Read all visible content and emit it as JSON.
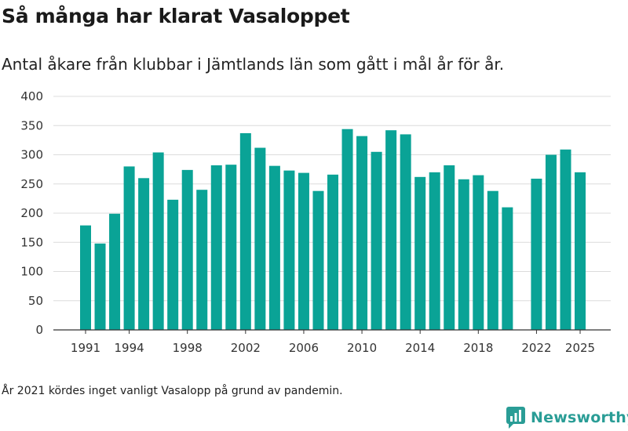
{
  "header": {
    "title": "Så många har klarat Vasaloppet",
    "subtitle": "Antal åkare från klubbar i Jämtlands län som gått i mål år för år."
  },
  "footer": {
    "note": "År 2021 kördes inget vanligt Vasalopp på grund av pandemin.",
    "brand": "Newsworthy"
  },
  "colors": {
    "bar": "#0aa396",
    "grid": "#dcdcdc",
    "axis": "#333333",
    "brand": "#2a9d96"
  },
  "chart_data": {
    "type": "bar",
    "title": "Så många har klarat Vasaloppet",
    "subtitle": "Antal åkare från klubbar i Jämtlands län som gått i mål år för år.",
    "xlabel": "",
    "ylabel": "",
    "ylim": [
      0,
      400
    ],
    "yticks": [
      0,
      50,
      100,
      150,
      200,
      250,
      300,
      350,
      400
    ],
    "xticks": [
      1991,
      1994,
      1998,
      2002,
      2006,
      2010,
      2014,
      2018,
      2022,
      2025
    ],
    "grid": true,
    "categories": [
      1991,
      1992,
      1993,
      1994,
      1995,
      1996,
      1997,
      1998,
      1999,
      2000,
      2001,
      2002,
      2003,
      2004,
      2005,
      2006,
      2007,
      2008,
      2009,
      2010,
      2011,
      2012,
      2013,
      2014,
      2015,
      2016,
      2017,
      2018,
      2019,
      2020,
      2021,
      2022,
      2023,
      2024,
      2025
    ],
    "values": [
      179,
      148,
      199,
      280,
      260,
      304,
      223,
      274,
      240,
      282,
      283,
      337,
      312,
      281,
      273,
      269,
      238,
      266,
      344,
      332,
      305,
      342,
      335,
      262,
      270,
      282,
      258,
      265,
      238,
      210,
      null,
      259,
      300,
      309,
      270
    ]
  }
}
